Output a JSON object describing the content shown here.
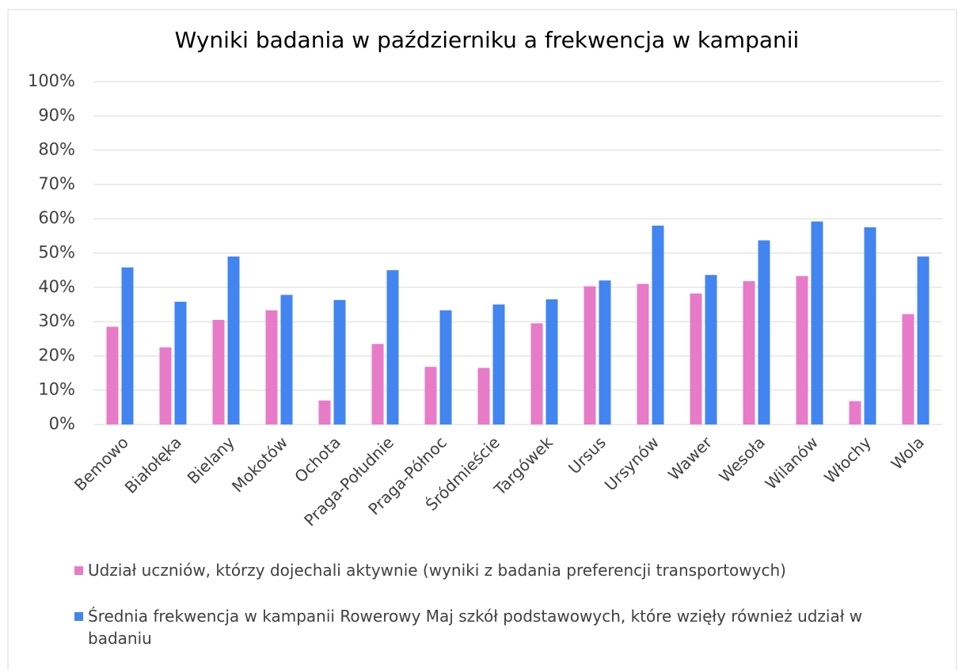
{
  "chart_data": {
    "type": "bar",
    "title": "Wyniki badania w październiku a frekwencja w kampanii",
    "categories": [
      "Bemowo",
      "Białołęka",
      "Bielany",
      "Mokotów",
      "Ochota",
      "Praga-Południe",
      "Praga-Północ",
      "Śródmieście",
      "Targówek",
      "Ursus",
      "Ursynów",
      "Wawer",
      "Wesoła",
      "Wilanów",
      "Włochy",
      "Wola"
    ],
    "series": [
      {
        "name": "Udział uczniów, którzy dojechali aktywnie (wyniki z badania preferencji transportowych)",
        "color": "#e87bc8",
        "values": [
          28.5,
          22.5,
          30.5,
          33.3,
          7,
          23.5,
          16.8,
          16.5,
          29.5,
          40.3,
          41,
          38.2,
          41.8,
          43.3,
          6.8,
          32.2
        ]
      },
      {
        "name": "Średnia frekwencja w kampanii Rowerowy Maj szkół podstawowych, które wzięły również udział w badaniu",
        "color": "#4385f0",
        "values": [
          45.8,
          35.8,
          49,
          37.8,
          36.3,
          45,
          33.3,
          35,
          36.5,
          42,
          58,
          43.6,
          53.7,
          59.2,
          57.5,
          49
        ]
      }
    ],
    "ylim": [
      0,
      100
    ],
    "yticks": [
      {
        "value": 0,
        "label": "0%"
      },
      {
        "value": 10,
        "label": "10%"
      },
      {
        "value": 20,
        "label": "20%"
      },
      {
        "value": 30,
        "label": "30%"
      },
      {
        "value": 40,
        "label": "40%"
      },
      {
        "value": 50,
        "label": "50%"
      },
      {
        "value": 60,
        "label": "60%"
      },
      {
        "value": 70,
        "label": "70%"
      },
      {
        "value": 80,
        "label": "80%"
      },
      {
        "value": 90,
        "label": "90%"
      },
      {
        "value": 100,
        "label": "100%"
      }
    ],
    "grid": true,
    "legend": "bottom"
  }
}
